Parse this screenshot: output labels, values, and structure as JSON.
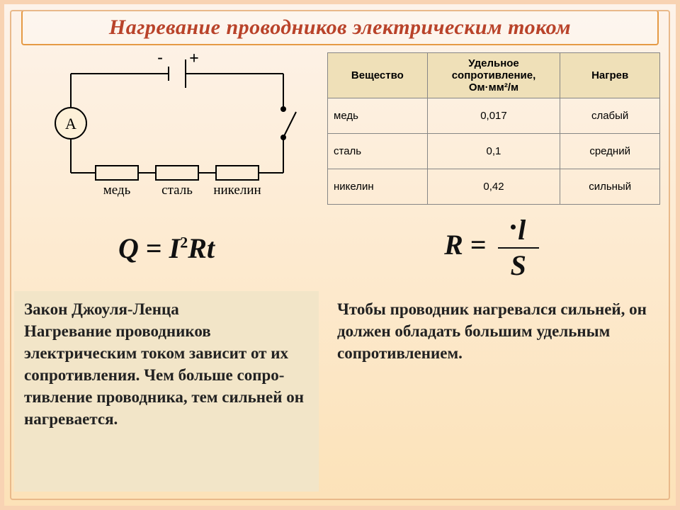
{
  "colors": {
    "page_bg_top": "#fdf3ea",
    "page_bg_bottom": "#fce2b8",
    "outer_border": "#f8d3b3",
    "inner_border": "#e9b98a",
    "title_border": "#e59a45",
    "title_color": "#b9432a",
    "table_border": "#868686",
    "table_header_bg": "#efe0b8",
    "para_bg": "#f2e5c8",
    "text_color": "#222222",
    "stroke": "#000000"
  },
  "title": "Нагревание проводников электрическим током",
  "circuit": {
    "minus_label": "-",
    "plus_label": "+",
    "ammeter_label": "А",
    "resistor_labels": [
      "медь",
      "сталь",
      "никелин"
    ]
  },
  "table": {
    "headers": [
      "Вещество",
      "Удельное сопротивление, Ом·мм²/м",
      "Нагрев"
    ],
    "rows": [
      [
        "медь",
        "0,017",
        "слабый"
      ],
      [
        "сталь",
        "0,1",
        "средний"
      ],
      [
        "никелин",
        "0,42",
        "сильный"
      ]
    ],
    "col_widths_pct": [
      30,
      40,
      30
    ],
    "font_size": 15
  },
  "formulas": {
    "left_parts": {
      "Q": "Q",
      "eq": " = ",
      "I": "I",
      "exp": "2",
      "R": "R",
      "t": "t"
    },
    "right_parts": {
      "R": "R",
      "eq": " = ",
      "rho": "·",
      "l": "l",
      "S": "S"
    },
    "font_size": 40
  },
  "para_left": "Закон Джоуля-Ленца\nНагревание проводников электрическим током зависит от их сопротивления. Чем больше сопро-тивление проводника, тем сильней он нагревается.",
  "para_right": "Чтобы проводник нагревался сильней, он должен обладать большим удельным сопротивлением."
}
